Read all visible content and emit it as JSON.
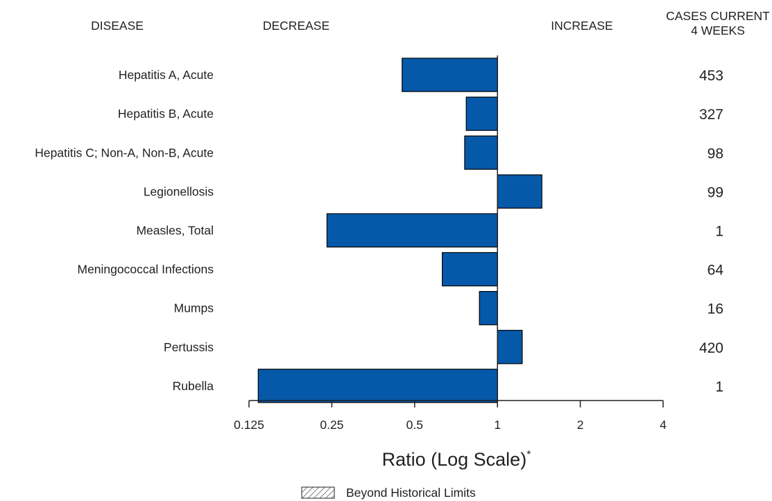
{
  "chart_data": {
    "type": "bar",
    "orientation": "horizontal",
    "categories": [
      "Hepatitis A, Acute",
      "Hepatitis B, Acute",
      "Hepatitis C; Non-A, Non-B, Acute",
      "Legionellosis",
      "Measles, Total",
      "Meningococcal Infections",
      "Mumps",
      "Pertussis",
      "Rubella"
    ],
    "values": [
      0.45,
      0.77,
      0.76,
      1.45,
      0.24,
      0.63,
      0.86,
      1.23,
      0.135
    ],
    "cases_current_4_weeks": [
      "453",
      "327",
      "98",
      "99",
      "1",
      "64",
      "16",
      "420",
      "1"
    ],
    "beyond_historical_limits": [
      false,
      false,
      false,
      false,
      false,
      false,
      false,
      false,
      false
    ],
    "x_scale": "log2",
    "xlim": [
      0.125,
      4
    ],
    "x_ticks": [
      0.125,
      0.25,
      0.5,
      1,
      2,
      4
    ],
    "x_tick_labels": [
      "0.125",
      "0.25",
      "0.5",
      "1",
      "2",
      "4"
    ],
    "xlabel": "Ratio (Log Scale)",
    "xlabel_superscript": "*",
    "headers": {
      "disease": "DISEASE",
      "decrease": "DECREASE",
      "increase": "INCREASE",
      "cases_line1": "CASES CURRENT",
      "cases_line2": "4 WEEKS"
    },
    "legend": {
      "label": "Beyond Historical Limits",
      "position": "bottom-center"
    },
    "bar_color": "#0659a8",
    "bar_stroke": "#000000"
  }
}
